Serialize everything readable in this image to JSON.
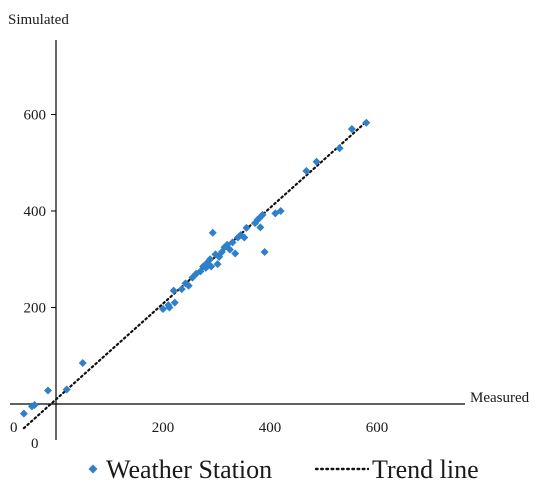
{
  "chart_data": {
    "type": "scatter",
    "xlabel": "Measured",
    "ylabel": "Simulated",
    "xlim": [
      -75,
      700
    ],
    "ylim": [
      -180,
      710
    ],
    "x_ticks": [
      0,
      200,
      400,
      600
    ],
    "y_ticks": [
      200,
      400,
      600
    ],
    "x_tick_labels": [
      "0",
      "200",
      "400",
      "600"
    ],
    "y_tick_labels": [
      "200",
      "400",
      "600"
    ],
    "y_zero_label": "0",
    "grid": false,
    "legend_position": "bottom",
    "series": [
      {
        "name": "Weather Station",
        "kind": "scatter",
        "marker": "diamond",
        "color": "#2f7fcb",
        "points": [
          [
            -60,
            -20
          ],
          [
            -45,
            -5
          ],
          [
            -40,
            -2
          ],
          [
            -15,
            28
          ],
          [
            20,
            30
          ],
          [
            50,
            85
          ],
          [
            200,
            197
          ],
          [
            210,
            205
          ],
          [
            212,
            200
          ],
          [
            220,
            235
          ],
          [
            222,
            210
          ],
          [
            235,
            238
          ],
          [
            242,
            250
          ],
          [
            248,
            245
          ],
          [
            255,
            262
          ],
          [
            262,
            270
          ],
          [
            270,
            275
          ],
          [
            275,
            285
          ],
          [
            280,
            282
          ],
          [
            282,
            292
          ],
          [
            288,
            300
          ],
          [
            290,
            285
          ],
          [
            293,
            355
          ],
          [
            298,
            310
          ],
          [
            302,
            290
          ],
          [
            305,
            305
          ],
          [
            310,
            315
          ],
          [
            315,
            325
          ],
          [
            320,
            330
          ],
          [
            325,
            320
          ],
          [
            330,
            335
          ],
          [
            335,
            312
          ],
          [
            340,
            345
          ],
          [
            345,
            350
          ],
          [
            352,
            345
          ],
          [
            356,
            365
          ],
          [
            372,
            375
          ],
          [
            377,
            382
          ],
          [
            380,
            385
          ],
          [
            382,
            366
          ],
          [
            386,
            392
          ],
          [
            390,
            315
          ],
          [
            410,
            395
          ],
          [
            420,
            400
          ],
          [
            468,
            483
          ],
          [
            487,
            502
          ],
          [
            530,
            530
          ],
          [
            553,
            570
          ],
          [
            580,
            583
          ]
        ]
      },
      {
        "name": "Trend line",
        "kind": "line",
        "style": "dotted",
        "color": "#111111",
        "x": [
          -60,
          580
        ],
        "y": [
          -50,
          585
        ]
      }
    ]
  }
}
